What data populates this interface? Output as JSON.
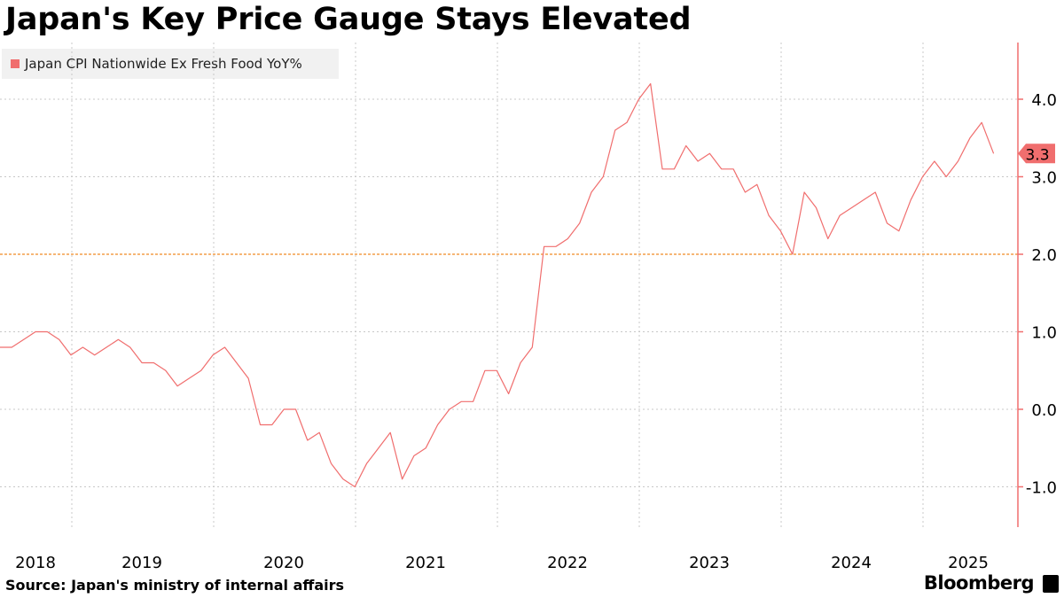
{
  "title": "Japan's Key Price Gauge Stays Elevated",
  "source": "Source: Japan's ministry of internal affairs",
  "brand": "Bloomberg",
  "colors": {
    "series": "#f06e6e",
    "reference": "#f08a24",
    "grid": "#c8c8c8",
    "axis": "#f06e6e"
  },
  "chart_data": {
    "type": "line",
    "title": "Japan's Key Price Gauge Stays Elevated",
    "legend_placement": "top-left",
    "grid": true,
    "series": [
      {
        "name": "Japan CPI Nationwide Ex Fresh Food YoY%",
        "x_start": "2018-01",
        "frequency": "monthly",
        "values": [
          0.8,
          0.8,
          0.9,
          1.0,
          1.0,
          0.9,
          0.7,
          0.8,
          0.7,
          0.8,
          0.9,
          0.8,
          0.6,
          0.6,
          0.5,
          0.3,
          0.4,
          0.5,
          0.7,
          0.8,
          0.6,
          0.4,
          -0.2,
          -0.2,
          0.0,
          0.0,
          -0.4,
          -0.3,
          -0.7,
          -0.9,
          -1.0,
          -0.7,
          -0.5,
          -0.3,
          -0.9,
          -0.6,
          -0.5,
          -0.2,
          0.0,
          0.1,
          0.1,
          0.5,
          0.5,
          0.2,
          0.6,
          0.8,
          2.1,
          2.1,
          2.2,
          2.4,
          2.8,
          3.0,
          3.6,
          3.7,
          4.0,
          4.2,
          3.1,
          3.1,
          3.4,
          3.2,
          3.3,
          3.1,
          3.1,
          2.8,
          2.9,
          2.5,
          2.3,
          2.0,
          2.8,
          2.6,
          2.2,
          2.5,
          2.6,
          2.7,
          2.8,
          2.4,
          2.3,
          2.7,
          3.0,
          3.2,
          3.0,
          3.2,
          3.5,
          3.7,
          3.3
        ]
      }
    ],
    "reference_line": 2.0,
    "last_value_label": "3.3",
    "x_tick_labels": [
      "2018",
      "2019",
      "2020",
      "2021",
      "2022",
      "2023",
      "2024",
      "2025"
    ],
    "y_ticks": [
      -1.0,
      0.0,
      1.0,
      2.0,
      3.0,
      4.0
    ],
    "y_tick_labels": [
      "-1.0",
      "0.0",
      "1.0",
      "2.0",
      "3.0",
      "4.0"
    ],
    "ylim": [
      -1.5,
      4.7
    ],
    "y_axis_position": "right"
  }
}
